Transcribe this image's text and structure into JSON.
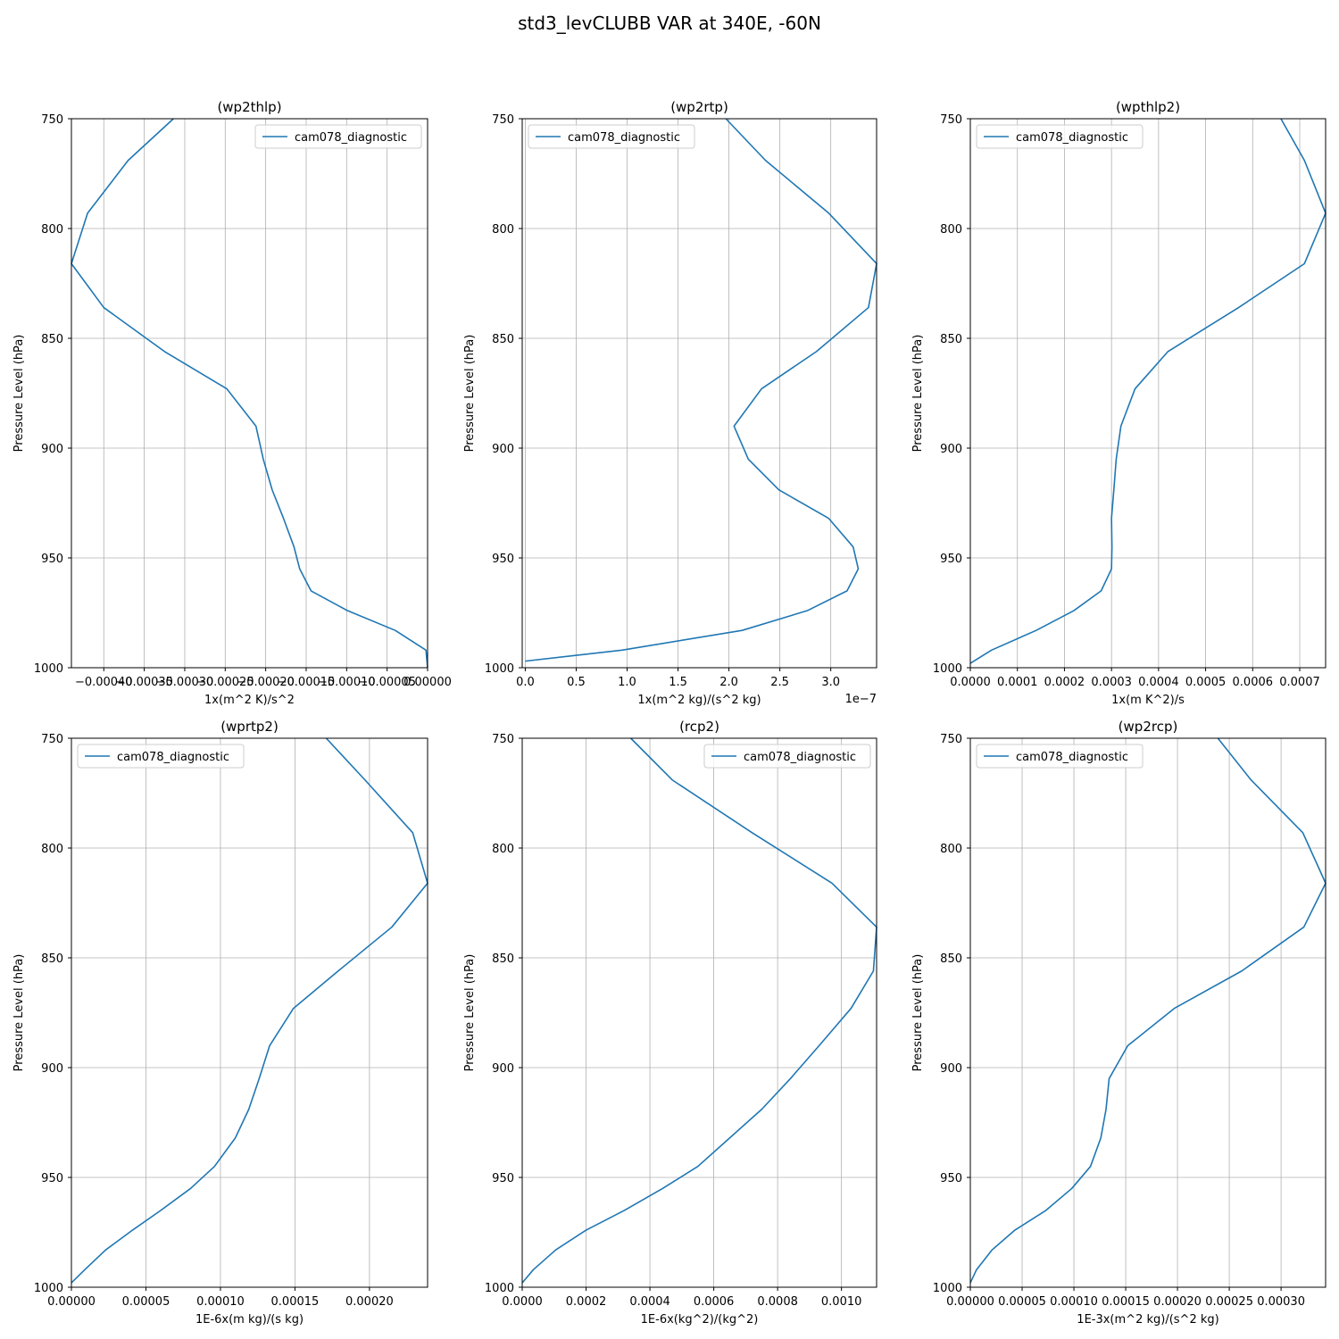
{
  "figure_title": "std3_levCLUBB VAR at 340E, -60N",
  "colors": {
    "series": "#1f77b4",
    "grid": "#b0b0b0",
    "axes": "#000000"
  },
  "chart_data": [
    {
      "type": "line",
      "title": "(wp2thlp)",
      "xlabel": "1x(m^2 K)/s^2",
      "ylabel": "Pressure Level (hPa)",
      "xlim": [
        -0.00044,
        0.0
      ],
      "ylim": [
        1000,
        750
      ],
      "y_inverted": true,
      "grid": true,
      "legend_position": "upper right",
      "x_ticks": [
        -0.0004,
        -0.00035,
        -0.0003,
        -0.00025,
        -0.0002,
        -0.00015,
        -0.0001,
        -5e-05,
        0.0
      ],
      "x_tick_labels": [
        "−0.00040",
        "−0.00035",
        "−0.00030",
        "−0.00025",
        "−0.00020",
        "−0.00015",
        "−0.00010",
        "−0.00005",
        "0.00000"
      ],
      "y_ticks": [
        750,
        800,
        850,
        900,
        950,
        1000
      ],
      "y_tick_labels": [
        "750",
        "800",
        "850",
        "900",
        "950",
        "1000"
      ],
      "series": [
        {
          "name": "cam078_diagnostic",
          "y": [
            750,
            769,
            793,
            816,
            836,
            856,
            873,
            890,
            905,
            919,
            932,
            945,
            955,
            965,
            974,
            983,
            992,
            1000
          ],
          "x": [
            -0.000314,
            -0.00037,
            -0.00042,
            -0.00044,
            -0.0004,
            -0.000325,
            -0.000248,
            -0.000212,
            -0.000203,
            -0.000192,
            -0.000178,
            -0.000165,
            -0.000158,
            -0.000144,
            -9.9e-05,
            -4e-05,
            -2e-06,
            0.0
          ]
        }
      ]
    },
    {
      "type": "line",
      "title": "(wp2rtp)",
      "xlabel": "1x(m^2 kg)/(s^2 kg)",
      "ylabel": "Pressure Level (hPa)",
      "offset_text": "1e−7",
      "xlim": [
        -3e-09,
        3.45e-07
      ],
      "ylim": [
        1000,
        750
      ],
      "y_inverted": true,
      "grid": true,
      "legend_position": "upper left",
      "x_ticks": [
        0.0,
        5e-08,
        1e-07,
        1.5e-07,
        2e-07,
        2.5e-07,
        3e-07
      ],
      "x_tick_labels": [
        "0.0",
        "0.5",
        "1.0",
        "1.5",
        "2.0",
        "2.5",
        "3.0"
      ],
      "y_ticks": [
        750,
        800,
        850,
        900,
        950,
        1000
      ],
      "y_tick_labels": [
        "750",
        "800",
        "850",
        "900",
        "950",
        "1000"
      ],
      "series": [
        {
          "name": "cam078_diagnostic",
          "y": [
            750,
            769,
            793,
            816,
            836,
            856,
            873,
            890,
            905,
            919,
            932,
            945,
            955,
            965,
            974,
            983,
            992,
            997
          ],
          "x": [
            1.97e-07,
            2.36e-07,
            2.98e-07,
            3.45e-07,
            3.37e-07,
            2.86e-07,
            2.32e-07,
            2.05e-07,
            2.19e-07,
            2.49e-07,
            2.98e-07,
            3.22e-07,
            3.27e-07,
            3.16e-07,
            2.77e-07,
            2.13e-07,
            9.5e-08,
            0.0
          ]
        }
      ]
    },
    {
      "type": "line",
      "title": "(wpthlp2)",
      "xlabel": "1x(m K^2)/s",
      "ylabel": "Pressure Level (hPa)",
      "xlim": [
        0.0,
        0.000755
      ],
      "ylim": [
        1000,
        750
      ],
      "y_inverted": true,
      "grid": true,
      "legend_position": "upper left",
      "x_ticks": [
        0.0,
        0.0001,
        0.0002,
        0.0003,
        0.0004,
        0.0005,
        0.0006,
        0.0007
      ],
      "x_tick_labels": [
        "0.0000",
        "0.0001",
        "0.0002",
        "0.0003",
        "0.0004",
        "0.0005",
        "0.0006",
        "0.0007"
      ],
      "y_ticks": [
        750,
        800,
        850,
        900,
        950,
        1000
      ],
      "y_tick_labels": [
        "750",
        "800",
        "850",
        "900",
        "950",
        "1000"
      ],
      "series": [
        {
          "name": "cam078_diagnostic",
          "y": [
            750,
            769,
            793,
            816,
            836,
            856,
            873,
            890,
            905,
            919,
            932,
            945,
            955,
            965,
            974,
            983,
            992,
            998
          ],
          "x": [
            0.00066,
            0.00071,
            0.000755,
            0.00071,
            0.00057,
            0.00042,
            0.00035,
            0.00032,
            0.00031,
            0.000305,
            0.0003,
            0.000301,
            0.0003,
            0.000278,
            0.00022,
            0.00014,
            4.5e-05,
            0.0
          ]
        }
      ]
    },
    {
      "type": "line",
      "title": "(wprtp2)",
      "xlabel": "1E-6x(m kg)/(s kg)",
      "ylabel": "Pressure Level (hPa)",
      "xlim": [
        0.0,
        0.000239
      ],
      "ylim": [
        1000,
        750
      ],
      "y_inverted": true,
      "grid": true,
      "legend_position": "upper left",
      "x_ticks": [
        0.0,
        5e-05,
        0.0001,
        0.00015,
        0.0002
      ],
      "x_tick_labels": [
        "0.00000",
        "0.00005",
        "0.00010",
        "0.00015",
        "0.00020"
      ],
      "y_ticks": [
        750,
        800,
        850,
        900,
        950,
        1000
      ],
      "y_tick_labels": [
        "750",
        "800",
        "850",
        "900",
        "950",
        "1000"
      ],
      "series": [
        {
          "name": "cam078_diagnostic",
          "y": [
            750,
            769,
            793,
            816,
            836,
            856,
            873,
            890,
            905,
            919,
            932,
            945,
            955,
            965,
            974,
            983,
            992,
            998
          ],
          "x": [
            0.000171,
            0.000197,
            0.000229,
            0.000239,
            0.000215,
            0.000179,
            0.000149,
            0.000133,
            0.000126,
            0.000119,
            0.00011,
            9.6e-05,
            8e-05,
            6e-05,
            4.1e-05,
            2.3e-05,
            9e-06,
            0.0
          ]
        }
      ]
    },
    {
      "type": "line",
      "title": "(rcp2)",
      "xlabel": "1E-6x(kg^2)/(kg^2)",
      "ylabel": "Pressure Level (hPa)",
      "xlim": [
        0.0,
        0.00111
      ],
      "ylim": [
        1000,
        750
      ],
      "y_inverted": true,
      "grid": true,
      "legend_position": "upper right",
      "x_ticks": [
        0.0,
        0.0002,
        0.0004,
        0.0006,
        0.0008,
        0.001
      ],
      "x_tick_labels": [
        "0.0000",
        "0.0002",
        "0.0004",
        "0.0006",
        "0.0008",
        "0.0010"
      ],
      "y_ticks": [
        750,
        800,
        850,
        900,
        950,
        1000
      ],
      "y_tick_labels": [
        "750",
        "800",
        "850",
        "900",
        "950",
        "1000"
      ],
      "series": [
        {
          "name": "cam078_diagnostic",
          "y": [
            750,
            769,
            793,
            816,
            836,
            856,
            873,
            890,
            905,
            919,
            932,
            945,
            955,
            965,
            974,
            983,
            992,
            998
          ],
          "x": [
            0.00034,
            0.00047,
            0.00072,
            0.00097,
            0.00111,
            0.0011,
            0.00103,
            0.00093,
            0.00084,
            0.00075,
            0.00065,
            0.00055,
            0.00044,
            0.00032,
            0.0002,
            0.000105,
            3.5e-05,
            0.0
          ]
        }
      ]
    },
    {
      "type": "line",
      "title": "(wp2rcp)",
      "xlabel": "1E-3x(m^2 kg)/(s^2 kg)",
      "ylabel": "Pressure Level (hPa)",
      "xlim": [
        0.0,
        0.000343
      ],
      "ylim": [
        1000,
        750
      ],
      "y_inverted": true,
      "grid": true,
      "legend_position": "upper left",
      "x_ticks": [
        0.0,
        5e-05,
        0.0001,
        0.00015,
        0.0002,
        0.00025,
        0.0003
      ],
      "x_tick_labels": [
        "0.00000",
        "0.00005",
        "0.00010",
        "0.00015",
        "0.00020",
        "0.00025",
        "0.00030"
      ],
      "y_ticks": [
        750,
        800,
        850,
        900,
        950,
        1000
      ],
      "y_tick_labels": [
        "750",
        "800",
        "850",
        "900",
        "950",
        "1000"
      ],
      "series": [
        {
          "name": "cam078_diagnostic",
          "y": [
            750,
            769,
            793,
            816,
            836,
            856,
            873,
            890,
            905,
            919,
            932,
            945,
            955,
            965,
            974,
            983,
            992,
            998
          ],
          "x": [
            0.000239,
            0.000271,
            0.000321,
            0.000343,
            0.000322,
            0.000262,
            0.000197,
            0.000152,
            0.000134,
            0.000131,
            0.000126,
            0.000116,
            9.8e-05,
            7.3e-05,
            4.3e-05,
            2.1e-05,
            6e-06,
            0.0
          ]
        }
      ]
    }
  ]
}
